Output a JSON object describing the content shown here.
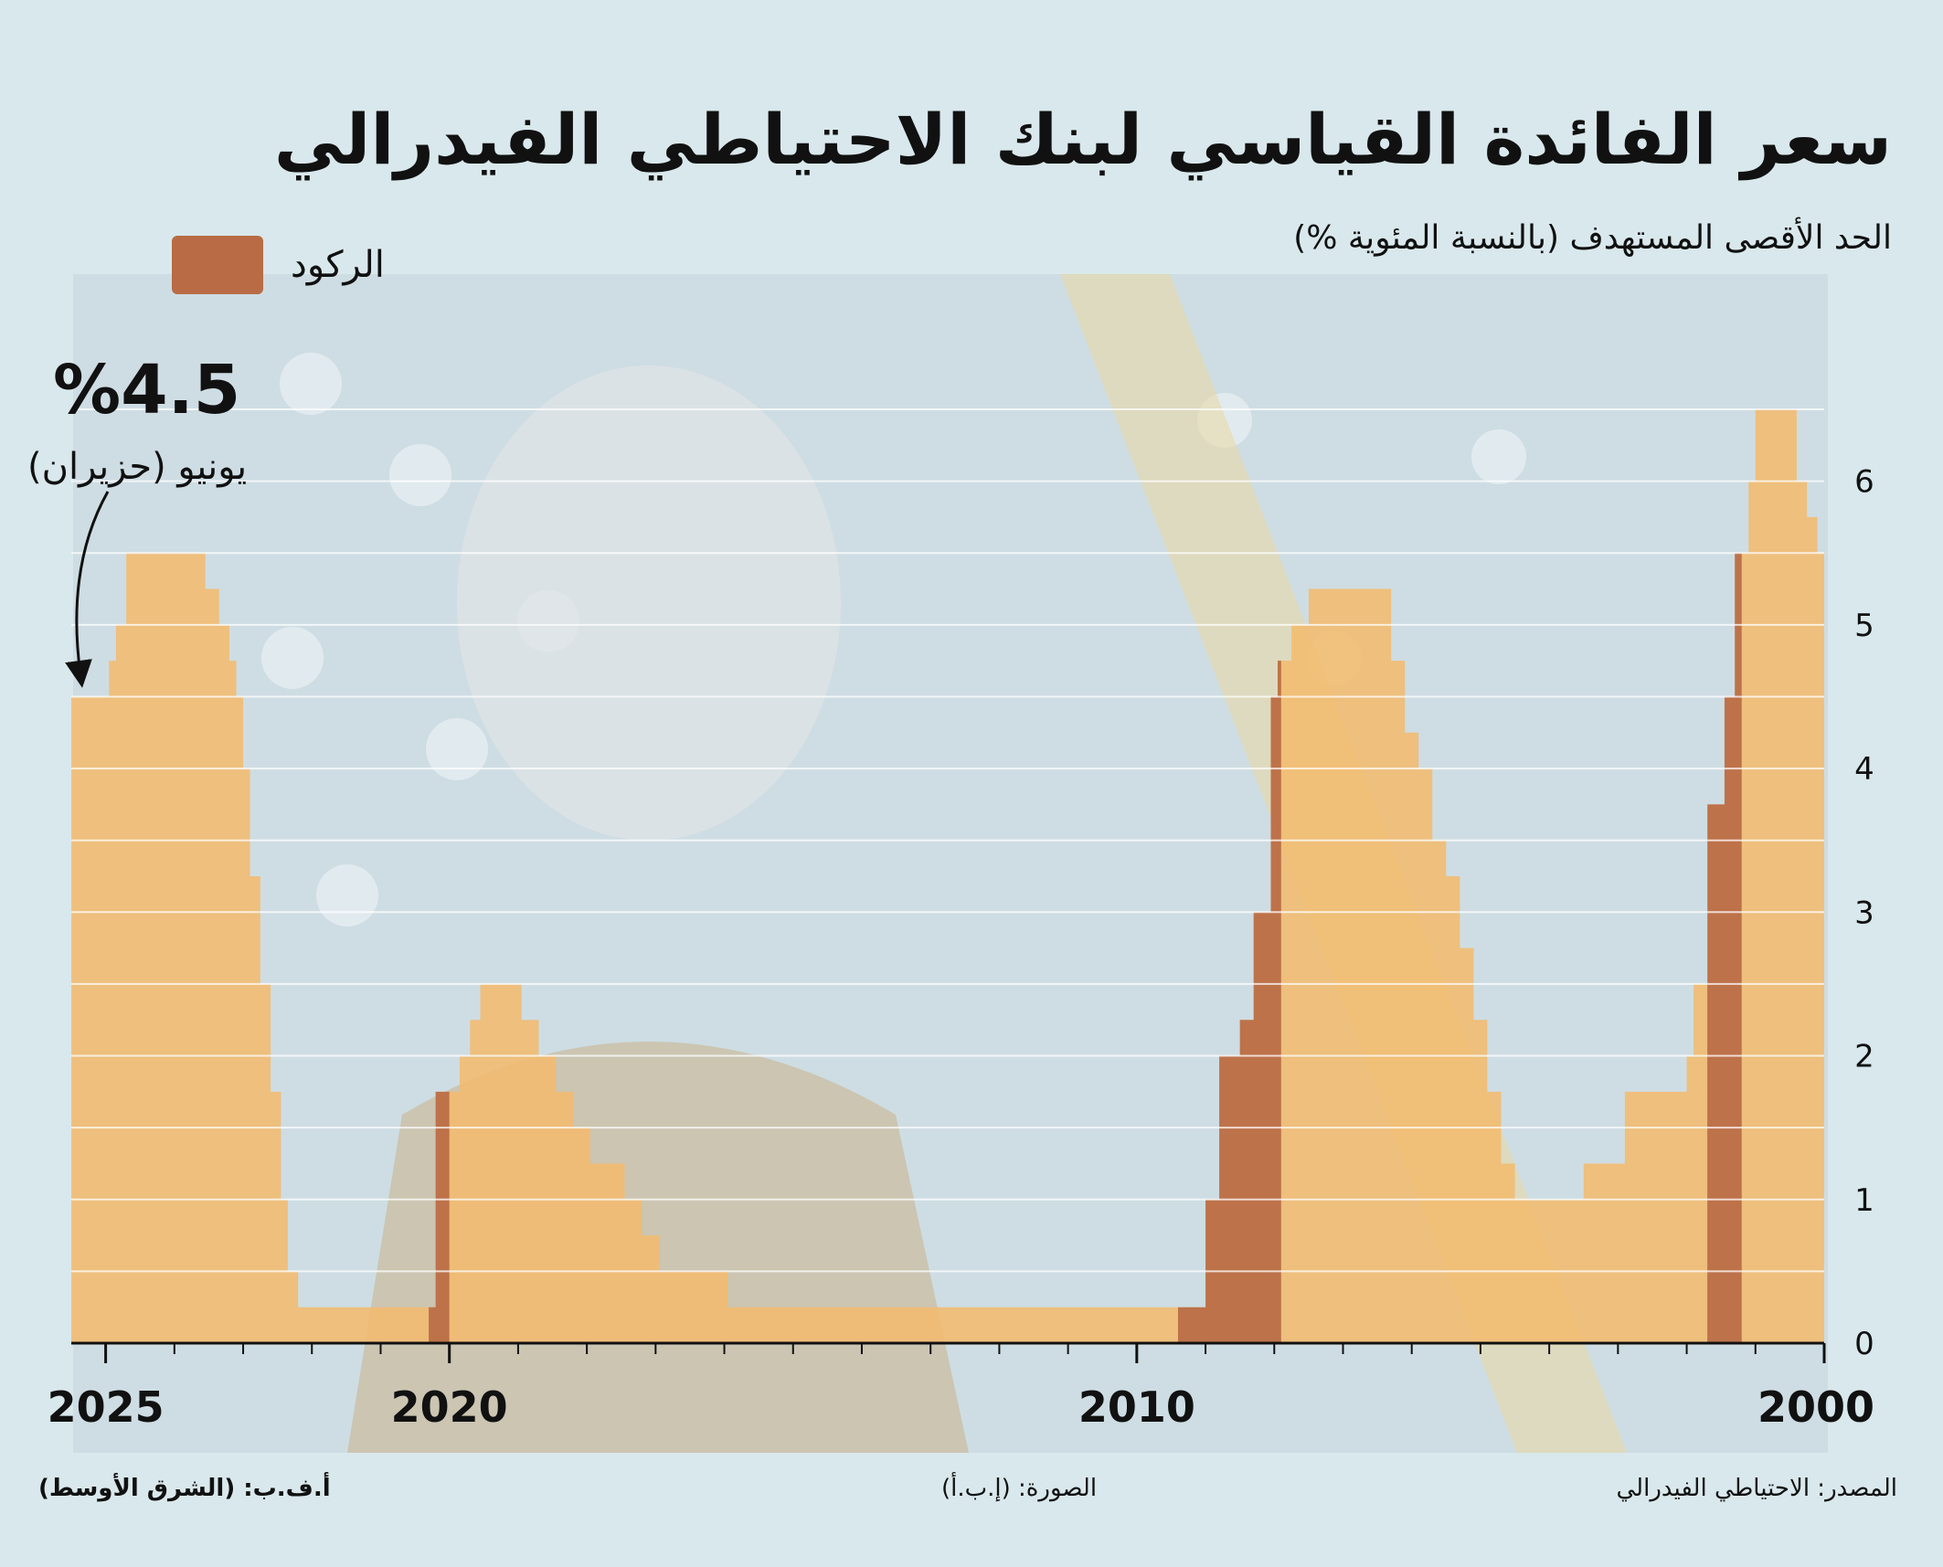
{
  "title": "سعر الفائدة القياسي لبنك الاحتياطي الفيدرالي",
  "subtitle": "الحد الأقصى المستهدف (بالنسبة المئوية %)",
  "legend": {
    "recession_label": "الركود"
  },
  "callout": {
    "value": "%4.5",
    "date": "يونيو (حزيران)"
  },
  "footer": {
    "left": "أ.ف.ب: (الشرق الأوسط)",
    "middle": "الصورة: (إ.ب.أ)",
    "right": "المصدر: الاحتياطي الفيدرالي"
  },
  "colors": {
    "bar": "#f2bb6e",
    "recession": "#b86b45",
    "background": "#d9e8ec",
    "gridline": "#ffffff",
    "axis": "#111111"
  },
  "chart_data": {
    "type": "area",
    "title": "سعر الفائدة القياسي لبنك الاحتياطي الفيدرالي",
    "ylabel": "الحد الأقصى المستهدف (بالنسبة المئوية %)",
    "x_direction": "right-to-left",
    "xlim": [
      2000,
      2025.5
    ],
    "ylim": [
      0,
      6.5
    ],
    "y_ticks": [
      0,
      1,
      2,
      3,
      4,
      5,
      6
    ],
    "x_tick_labels": [
      {
        "x": 2000,
        "label": "2000"
      },
      {
        "x": 2010,
        "label": "2010"
      },
      {
        "x": 2020,
        "label": "2020"
      },
      {
        "x": 2025,
        "label": "2025"
      }
    ],
    "grid": true,
    "legend_position": "top-left",
    "series": [
      {
        "name": "الحد الأقصى المستهدف",
        "points": [
          [
            2000.0,
            5.5
          ],
          [
            2000.1,
            5.75
          ],
          [
            2000.25,
            6.0
          ],
          [
            2000.4,
            6.5
          ],
          [
            2001.0,
            6.0
          ],
          [
            2001.1,
            5.5
          ],
          [
            2001.3,
            4.5
          ],
          [
            2001.45,
            3.75
          ],
          [
            2001.7,
            2.5
          ],
          [
            2001.9,
            2.0
          ],
          [
            2002.0,
            1.75
          ],
          [
            2002.9,
            1.25
          ],
          [
            2003.5,
            1.0
          ],
          [
            2004.5,
            1.25
          ],
          [
            2004.7,
            1.75
          ],
          [
            2004.9,
            2.25
          ],
          [
            2005.1,
            2.75
          ],
          [
            2005.3,
            3.25
          ],
          [
            2005.5,
            3.5
          ],
          [
            2005.7,
            4.0
          ],
          [
            2005.9,
            4.25
          ],
          [
            2006.1,
            4.75
          ],
          [
            2006.3,
            5.25
          ],
          [
            2007.5,
            5.0
          ],
          [
            2007.75,
            4.75
          ],
          [
            2007.95,
            4.5
          ],
          [
            2008.05,
            3.0
          ],
          [
            2008.3,
            2.25
          ],
          [
            2008.5,
            2.0
          ],
          [
            2008.8,
            1.0
          ],
          [
            2009.0,
            0.25
          ],
          [
            2015.95,
            0.5
          ],
          [
            2016.95,
            0.75
          ],
          [
            2017.2,
            1.0
          ],
          [
            2017.45,
            1.25
          ],
          [
            2017.95,
            1.5
          ],
          [
            2018.2,
            1.75
          ],
          [
            2018.45,
            2.0
          ],
          [
            2018.7,
            2.25
          ],
          [
            2018.95,
            2.5
          ],
          [
            2019.55,
            2.25
          ],
          [
            2019.7,
            2.0
          ],
          [
            2019.85,
            1.75
          ],
          [
            2020.2,
            0.25
          ],
          [
            2022.2,
            0.5
          ],
          [
            2022.35,
            1.0
          ],
          [
            2022.45,
            1.75
          ],
          [
            2022.6,
            2.5
          ],
          [
            2022.75,
            3.25
          ],
          [
            2022.9,
            4.0
          ],
          [
            2023.0,
            4.5
          ],
          [
            2023.1,
            4.75
          ],
          [
            2023.2,
            5.0
          ],
          [
            2023.35,
            5.25
          ],
          [
            2023.55,
            5.5
          ],
          [
            2024.7,
            5.0
          ],
          [
            2024.85,
            4.75
          ],
          [
            2024.95,
            4.5
          ],
          [
            2025.5,
            4.5
          ]
        ]
      }
    ],
    "recessions": [
      {
        "name": "الركود",
        "start": 2001.2,
        "end": 2001.7
      },
      {
        "name": "الركود",
        "start": 2007.9,
        "end": 2009.4
      },
      {
        "name": "الركود",
        "start": 2020.0,
        "end": 2020.3
      }
    ],
    "annotations": [
      {
        "text": "%4.5",
        "x": 2025.5,
        "y": 4.5
      },
      {
        "text": "يونيو (حزيران)",
        "x": 2025.5,
        "y": 4.5
      }
    ]
  }
}
